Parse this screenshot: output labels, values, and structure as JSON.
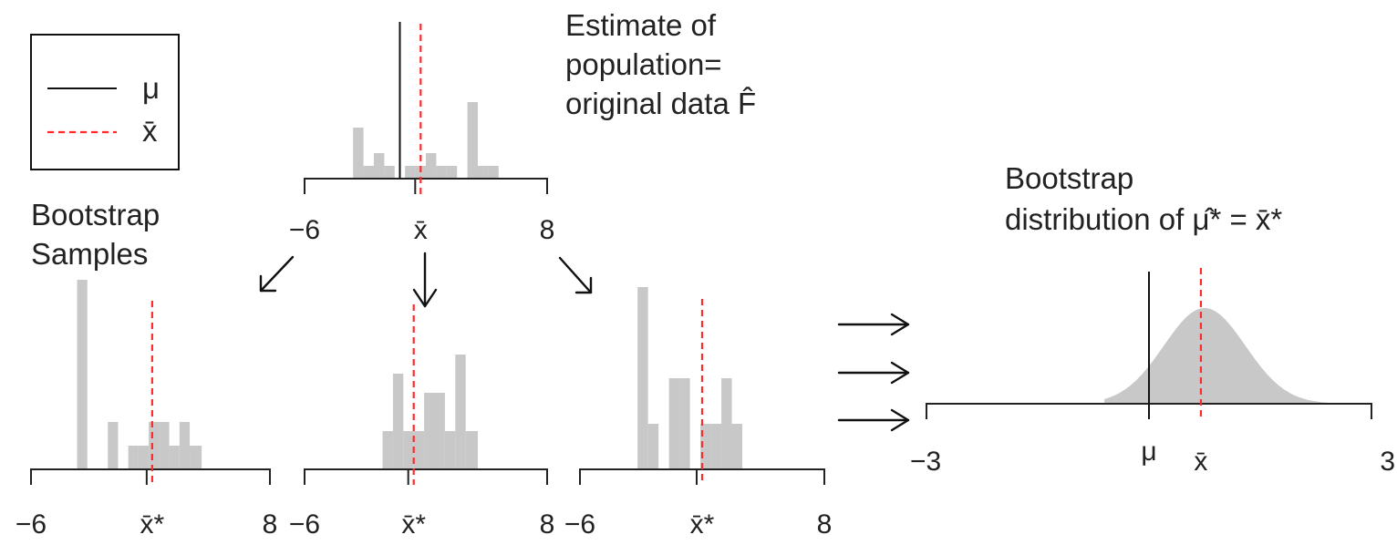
{
  "legend": {
    "items": [
      {
        "label": "μ",
        "style": "solid",
        "color": "#111111"
      },
      {
        "label": "x̄",
        "style": "dashed",
        "color": "#ff2a2a"
      }
    ]
  },
  "labels": {
    "population_line1": "Estimate of",
    "population_line2": "population=",
    "population_line3": "original data F̂",
    "bootstrap_samples_line1": "Bootstrap",
    "bootstrap_samples_line2": "Samples",
    "bootstrap_dist_line1": "Bootstrap",
    "bootstrap_dist_line2": "distribution of μ̂* = x̄*"
  },
  "colors": {
    "bars": "#c8c8c8",
    "mean_line": "#ff2a2a",
    "axis": "#222222"
  },
  "chart_data": [
    {
      "id": "original",
      "type": "bar",
      "xlim": [
        -6,
        8
      ],
      "tick_labels": [
        "−6",
        "x̄",
        "8"
      ],
      "bin_edges": [
        -3.2,
        -2.6,
        -2.0,
        -1.4,
        -0.8,
        -0.2,
        0.4,
        1.0,
        1.6,
        2.2,
        2.8,
        3.4,
        4.0,
        4.6,
        5.2
      ],
      "counts": [
        4,
        1,
        2,
        1,
        0,
        1,
        1,
        2,
        1,
        1,
        0,
        6,
        1,
        1
      ],
      "mu": -0.5,
      "xbar": 0.7
    },
    {
      "id": "sample1",
      "type": "bar",
      "xlim": [
        -6,
        8
      ],
      "tick_labels": [
        "−6",
        "x̄*",
        "8"
      ],
      "bin_edges": [
        -3.3,
        -2.7,
        -2.1,
        -1.5,
        -0.9,
        -0.3,
        0.3,
        0.9,
        1.5,
        2.1,
        2.7,
        3.3,
        4.0
      ],
      "counts": [
        4,
        0,
        0,
        1,
        0,
        0.5,
        0.5,
        1,
        1,
        0.5,
        1,
        0.5
      ],
      "xbar": 1.1
    },
    {
      "id": "sample2",
      "type": "bar",
      "xlim": [
        -6,
        8
      ],
      "tick_labels": [
        "−6",
        "x̄*",
        "8"
      ],
      "bin_edges": [
        -3.3,
        -2.7,
        -2.1,
        -1.5,
        -0.9,
        -0.3,
        0.3,
        0.9,
        1.5,
        2.1,
        2.7,
        3.3,
        4.0
      ],
      "counts": [
        0,
        0,
        0,
        1,
        2.5,
        1,
        1,
        2,
        2,
        1,
        3,
        1
      ],
      "xbar": 0.3
    },
    {
      "id": "sample3",
      "type": "bar",
      "xlim": [
        -6,
        8
      ],
      "tick_labels": [
        "−6",
        "x̄*",
        "8"
      ],
      "bin_edges": [
        -3.3,
        -2.7,
        -2.1,
        -1.5,
        -0.9,
        -0.3,
        0.3,
        0.9,
        1.5,
        2.1,
        2.7,
        3.3,
        4.0
      ],
      "counts": [
        0,
        4,
        1,
        0,
        2,
        2,
        0,
        1,
        1,
        2,
        1,
        0
      ],
      "xbar": 1.0
    },
    {
      "id": "bootstrap_distribution",
      "type": "area",
      "xlim": [
        -3,
        3
      ],
      "tick_labels": [
        "−3",
        "μ",
        "x̄",
        "3"
      ],
      "mu": 0.0,
      "xbar": 0.7,
      "center": 0.75,
      "sd": 0.55
    }
  ]
}
